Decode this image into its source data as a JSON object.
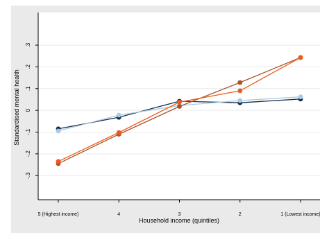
{
  "chart_data": {
    "type": "line",
    "title": "",
    "xlabel": "Household income (quintiles)",
    "ylabel": "Standardised mental health",
    "categories": [
      "5 (Highest income)",
      "4",
      "3",
      "2",
      "1 (Lowest income)"
    ],
    "ylim": [
      -0.36,
      0.38
    ],
    "yticks": [
      -0.3,
      -0.2,
      -0.1,
      0,
      0.1,
      0.2,
      0.3
    ],
    "ytick_labels": [
      "-.3",
      "-.2",
      "-.1",
      "0",
      ".1",
      ".2",
      ".3"
    ],
    "grid": true,
    "legend": "none",
    "series": [
      {
        "color": "#1b2c4a",
        "values": [
          -0.085,
          -0.032,
          0.042,
          0.035,
          0.052
        ]
      },
      {
        "color": "#a6cbe3",
        "values": [
          -0.095,
          -0.022,
          0.022,
          0.045,
          0.062
        ]
      },
      {
        "color": "#a8542a",
        "values": [
          -0.245,
          -0.11,
          0.018,
          0.128,
          0.243
        ]
      },
      {
        "color": "#ef5a1a",
        "values": [
          -0.235,
          -0.102,
          0.038,
          0.09,
          0.243
        ]
      }
    ]
  },
  "style": {
    "page_background": "#ffffff",
    "outer_background": "#eaeaea",
    "plot_background": "#ffffff",
    "grid_color": "#eaeaea",
    "axis_color": "#000000"
  }
}
